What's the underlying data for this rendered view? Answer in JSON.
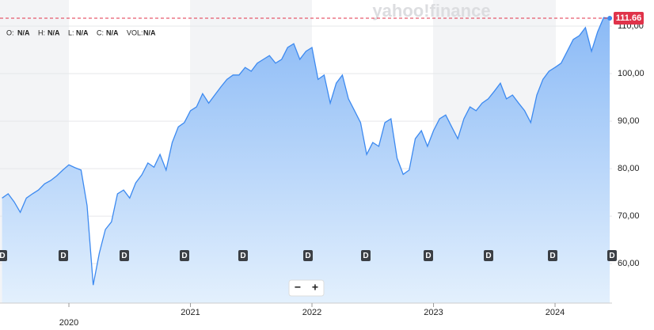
{
  "watermark": "yahoo!finance",
  "ohlc": [
    {
      "label": "O:",
      "value": "N/A"
    },
    {
      "label": "H:",
      "value": "N/A"
    },
    {
      "label": "L:",
      "value": "N/A"
    },
    {
      "label": "C:",
      "value": "N/A"
    },
    {
      "label": "VOL:",
      "value": "N/A"
    }
  ],
  "dividends": [
    "D",
    "D",
    "D",
    "D",
    "D",
    "D",
    "D",
    "D",
    "D",
    "D",
    "D"
  ],
  "zoom_controls": [
    "−",
    "+"
  ],
  "chart_data": {
    "type": "area",
    "color": "#3d8af0",
    "categories": [
      null,
      null,
      null,
      null,
      null,
      null,
      null,
      null,
      null,
      null,
      null,
      "2020",
      null,
      null,
      null,
      null,
      null,
      null,
      null,
      null,
      null,
      null,
      null,
      null,
      null,
      null,
      null,
      null,
      null,
      null,
      null,
      "2021",
      null,
      null,
      null,
      null,
      null,
      null,
      null,
      null,
      null,
      null,
      null,
      null,
      null,
      null,
      null,
      null,
      null,
      null,
      null,
      "2022",
      null,
      null,
      null,
      null,
      null,
      null,
      null,
      null,
      null,
      null,
      null,
      null,
      null,
      null,
      null,
      null,
      null,
      null,
      null,
      "2023",
      null,
      null,
      null,
      null,
      null,
      null,
      null,
      null,
      null,
      null,
      null,
      null,
      null,
      null,
      null,
      null,
      null,
      null,
      null,
      "2024",
      null,
      null,
      null,
      null,
      null,
      null,
      null,
      null,
      null
    ],
    "values": [
      73.8,
      74.7,
      73,
      70.8,
      73.8,
      74.7,
      75.5,
      76.8,
      77.5,
      78.5,
      79.7,
      80.8,
      80.2,
      79.7,
      72.2,
      55.5,
      62.2,
      67.2,
      68.8,
      74.7,
      75.5,
      73.8,
      77,
      78.7,
      81.2,
      80.3,
      83,
      79.7,
      85.5,
      88.8,
      89.7,
      92.2,
      93,
      95.8,
      93.8,
      95.5,
      97.2,
      98.8,
      99.7,
      99.7,
      101.3,
      100.5,
      102.2,
      103,
      103.8,
      102.2,
      103,
      105.5,
      106.3,
      103,
      104.7,
      105.5,
      98.8,
      99.7,
      93.8,
      98,
      99.7,
      94.7,
      92.2,
      89.7,
      83,
      85.5,
      84.7,
      89.7,
      90.5,
      82.2,
      78.8,
      79.7,
      86.3,
      88,
      84.7,
      88,
      90.5,
      91.3,
      88.8,
      86.3,
      90.5,
      93,
      92.2,
      93.8,
      94.7,
      96.3,
      98,
      94.7,
      95.5,
      93.8,
      92.2,
      89.7,
      95.5,
      98.8,
      100.5,
      101.3,
      102.2,
      104.7,
      107.2,
      108,
      109.7,
      104.7,
      108.8,
      111.8,
      111.66
    ],
    "ylim": [
      51.7,
      115.5
    ],
    "yticks": [
      {
        "value": 60,
        "label": "60,00"
      },
      {
        "value": 70,
        "label": "70,00"
      },
      {
        "value": 80,
        "label": "80,00"
      },
      {
        "value": 90,
        "label": "90,00"
      },
      {
        "value": 100,
        "label": "100,00"
      },
      {
        "value": 110,
        "label": "110,00"
      }
    ],
    "grid": true,
    "last_price_color": "#e0334a"
  }
}
